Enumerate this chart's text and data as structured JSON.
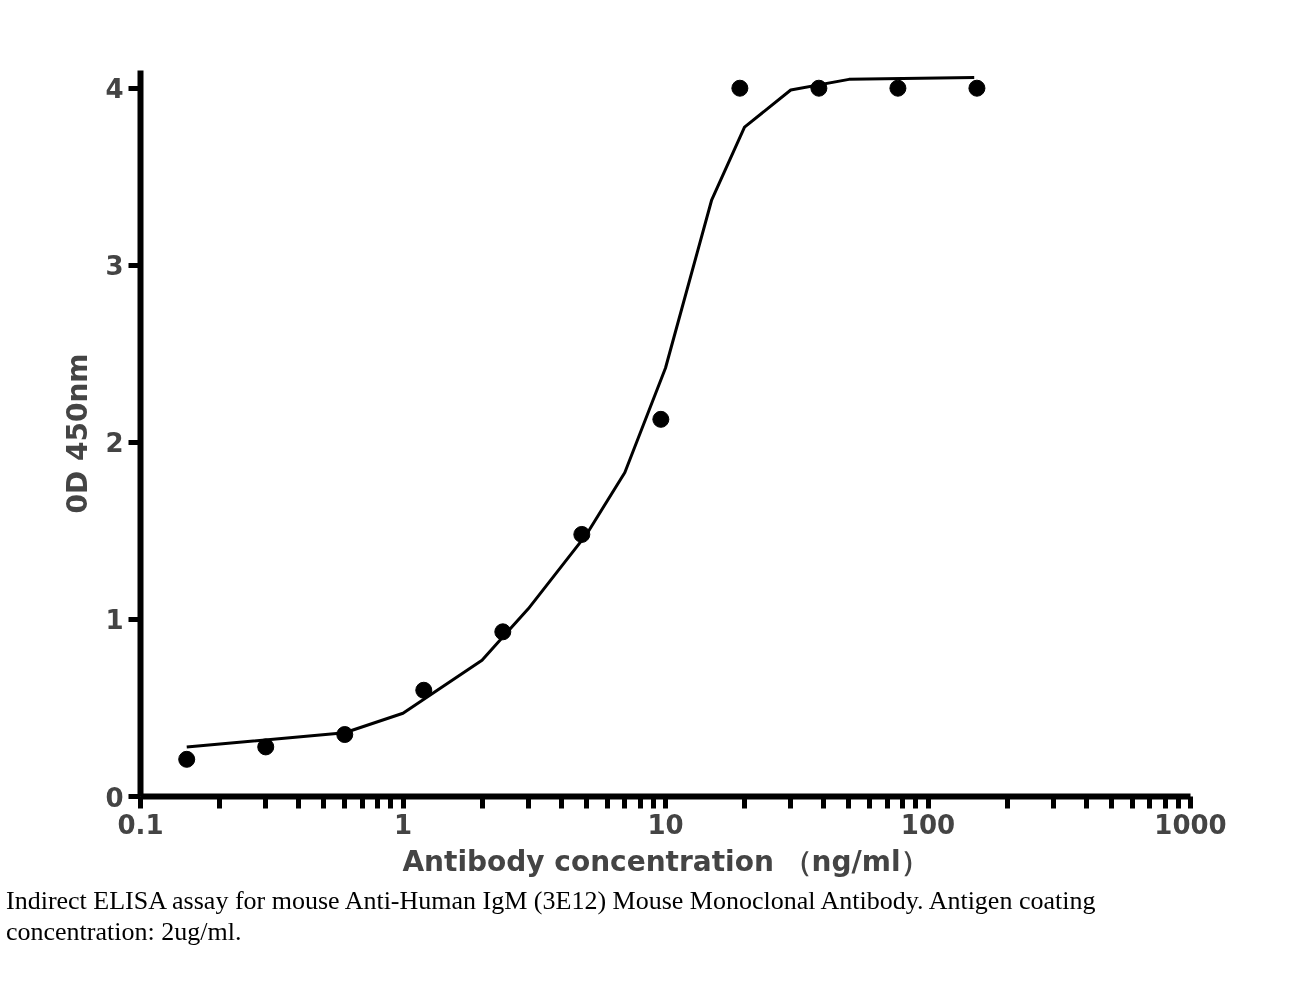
{
  "chart_data": {
    "type": "scatter",
    "xlabel": "Antibody concentration （ng/ml）",
    "ylabel": "0D 450nm",
    "log": "x",
    "grid": false,
    "marker": "circle",
    "xlim": [
      0.1,
      1000
    ],
    "ylim": [
      0,
      4.1
    ],
    "xticks": [
      0.1,
      {
        "value": 0.2,
        "label": null
      },
      {
        "value": 0.3,
        "label": null
      },
      {
        "value": 0.4,
        "label": null
      },
      {
        "value": 0.5,
        "label": null
      },
      {
        "value": 0.6,
        "label": null
      },
      {
        "value": 0.7,
        "label": null
      },
      {
        "value": 0.8,
        "label": null
      },
      {
        "value": 0.9,
        "label": null
      },
      1,
      {
        "value": 2,
        "label": null
      },
      {
        "value": 3,
        "label": null
      },
      {
        "value": 4,
        "label": null
      },
      {
        "value": 5,
        "label": null
      },
      {
        "value": 6,
        "label": null
      },
      {
        "value": 7,
        "label": null
      },
      {
        "value": 8,
        "label": null
      },
      {
        "value": 9,
        "label": null
      },
      10,
      {
        "value": 20,
        "label": null
      },
      {
        "value": 30,
        "label": null
      },
      {
        "value": 40,
        "label": null
      },
      {
        "value": 50,
        "label": null
      },
      {
        "value": 60,
        "label": null
      },
      {
        "value": 70,
        "label": null
      },
      {
        "value": 80,
        "label": null
      },
      {
        "value": 90,
        "label": null
      },
      100,
      {
        "value": 200,
        "label": null
      },
      {
        "value": 300,
        "label": null
      },
      {
        "value": 400,
        "label": null
      },
      {
        "value": 500,
        "label": null
      },
      {
        "value": 600,
        "label": null
      },
      {
        "value": 700,
        "label": null
      },
      {
        "value": 800,
        "label": null
      },
      {
        "value": 900,
        "label": null
      },
      1000
    ],
    "yticks": [
      0,
      1,
      2,
      3,
      4
    ],
    "series": [
      {
        "color": "#000000",
        "x": [
          0.15,
          0.3,
          0.6,
          1.2,
          2.4,
          4.8,
          9.6,
          19.2,
          38.4,
          76.8,
          153.6
        ],
        "values": [
          0.21,
          0.28,
          0.35,
          0.6,
          0.93,
          1.48,
          2.13,
          4.0,
          4.0,
          4.0,
          4.0
        ]
      },
      {
        "type": "line",
        "color": "#000000",
        "marker": "none",
        "x": [
          0.15,
          0.6,
          1,
          2,
          3,
          5,
          7,
          10,
          15,
          20,
          30,
          50,
          150
        ],
        "values": [
          0.28,
          0.36,
          0.47,
          0.77,
          1.06,
          1.48,
          1.83,
          2.42,
          3.37,
          3.78,
          3.99,
          4.05,
          4.06
        ]
      }
    ],
    "annotations": [
      "Indirect ELISA assay for mouse Anti-Human IgM (3E12) Mouse Monoclonal Antibody. Antigen coating concentration: 2ug/ml."
    ]
  }
}
